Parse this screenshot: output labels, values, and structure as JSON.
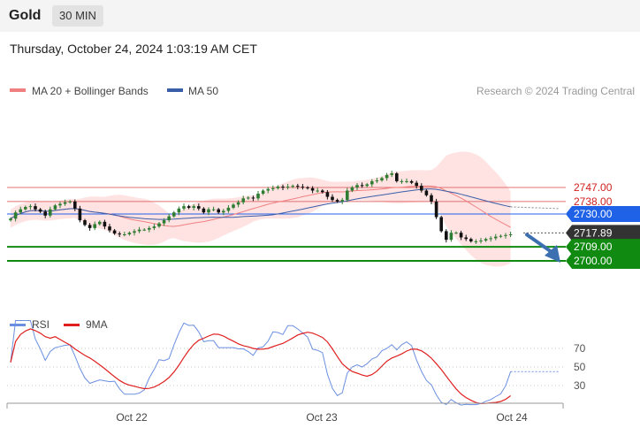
{
  "header": {
    "title": "Gold",
    "interval": "30 MIN"
  },
  "datetime": "Thursday, October 24, 2024 1:03:19 AM CET",
  "colors": {
    "ma20": "#f08080",
    "ma50": "#3b5ea8",
    "bands_fill": "#ffdede",
    "candle_up": "#2e7d32",
    "candle_down": "#111111",
    "resistance": "#e07070",
    "pivot": "#1f62e8",
    "support": "#118a11",
    "current": "#333333",
    "arrow": "#3b6fb0",
    "rsi": "#6b8fe0",
    "rsi_ma": "#e02020"
  },
  "chart_data": [
    {
      "type": "candlestick",
      "title": "Gold",
      "legend": [
        {
          "label": "MA 20 + Bollinger Bands",
          "color": "#f08080"
        },
        {
          "label": "MA 50",
          "color": "#3b5ea8"
        }
      ],
      "legend_position": "top-left",
      "attribution": "Research © 2024 Trading Central",
      "ylim": [
        2697,
        2770
      ],
      "grid": false,
      "x_ticks": [
        "Oct 22",
        "Oct 23",
        "Oct 24"
      ],
      "levels": [
        {
          "value": 2747.0,
          "label": "2747.00",
          "kind": "resistance"
        },
        {
          "value": 2738.0,
          "label": "2738.00",
          "kind": "resistance"
        },
        {
          "value": 2730.0,
          "label": "2730.00",
          "kind": "pivot"
        },
        {
          "value": 2717.89,
          "label": "2717.89",
          "kind": "current"
        },
        {
          "value": 2709.0,
          "label": "2709.00",
          "kind": "support"
        },
        {
          "value": 2700.0,
          "label": "2700.00",
          "kind": "support"
        }
      ],
      "forecast_arrow": {
        "from": 2717.89,
        "to": 2700.0,
        "direction": "down"
      },
      "close": [
        2727.0,
        2731.0,
        2733.0,
        2734.5,
        2735.0,
        2733.0,
        2731.5,
        2729.0,
        2733.0,
        2735.5,
        2736.5,
        2737.5,
        2738.0,
        2733.5,
        2726.0,
        2723.0,
        2721.0,
        2723.5,
        2725.0,
        2722.0,
        2719.5,
        2717.5,
        2717.0,
        2717.0,
        2718.0,
        2719.0,
        2720.0,
        2720.0,
        2721.0,
        2722.0,
        2724.0,
        2726.0,
        2728.5,
        2731.0,
        2733.5,
        2735.0,
        2734.0,
        2735.0,
        2733.5,
        2731.0,
        2733.0,
        2733.0,
        2731.0,
        2732.0,
        2734.0,
        2736.0,
        2737.5,
        2740.0,
        2740.5,
        2740.0,
        2743.0,
        2745.0,
        2746.0,
        2746.5,
        2747.5,
        2747.0,
        2747.5,
        2748.0,
        2747.5,
        2747.0,
        2746.5,
        2745.0,
        2745.0,
        2744.0,
        2741.0,
        2739.0,
        2738.0,
        2739.0,
        2745.0,
        2747.0,
        2748.5,
        2748.0,
        2749.0,
        2751.0,
        2751.5,
        2753.0,
        2755.0,
        2756.0,
        2751.0,
        2751.0,
        2751.0,
        2750.0,
        2748.0,
        2745.0,
        2742.0,
        2738.0,
        2728.0,
        2719.0,
        2713.5,
        2718.0,
        2718.0,
        2715.0,
        2714.0,
        2712.5,
        2712.5,
        2713.0,
        2714.0,
        2714.5,
        2715.5,
        2716.0,
        2716.5,
        2717.0
      ]
    },
    {
      "type": "line",
      "legend": [
        {
          "label": "RSI",
          "color": "#6b8fe0"
        },
        {
          "label": "9MA",
          "color": "#e02020"
        }
      ],
      "legend_position": "top-left",
      "ylim": [
        20,
        80
      ],
      "y_ticks": [
        "70",
        "50",
        "30"
      ],
      "levels": [
        70,
        50,
        30
      ]
    }
  ]
}
